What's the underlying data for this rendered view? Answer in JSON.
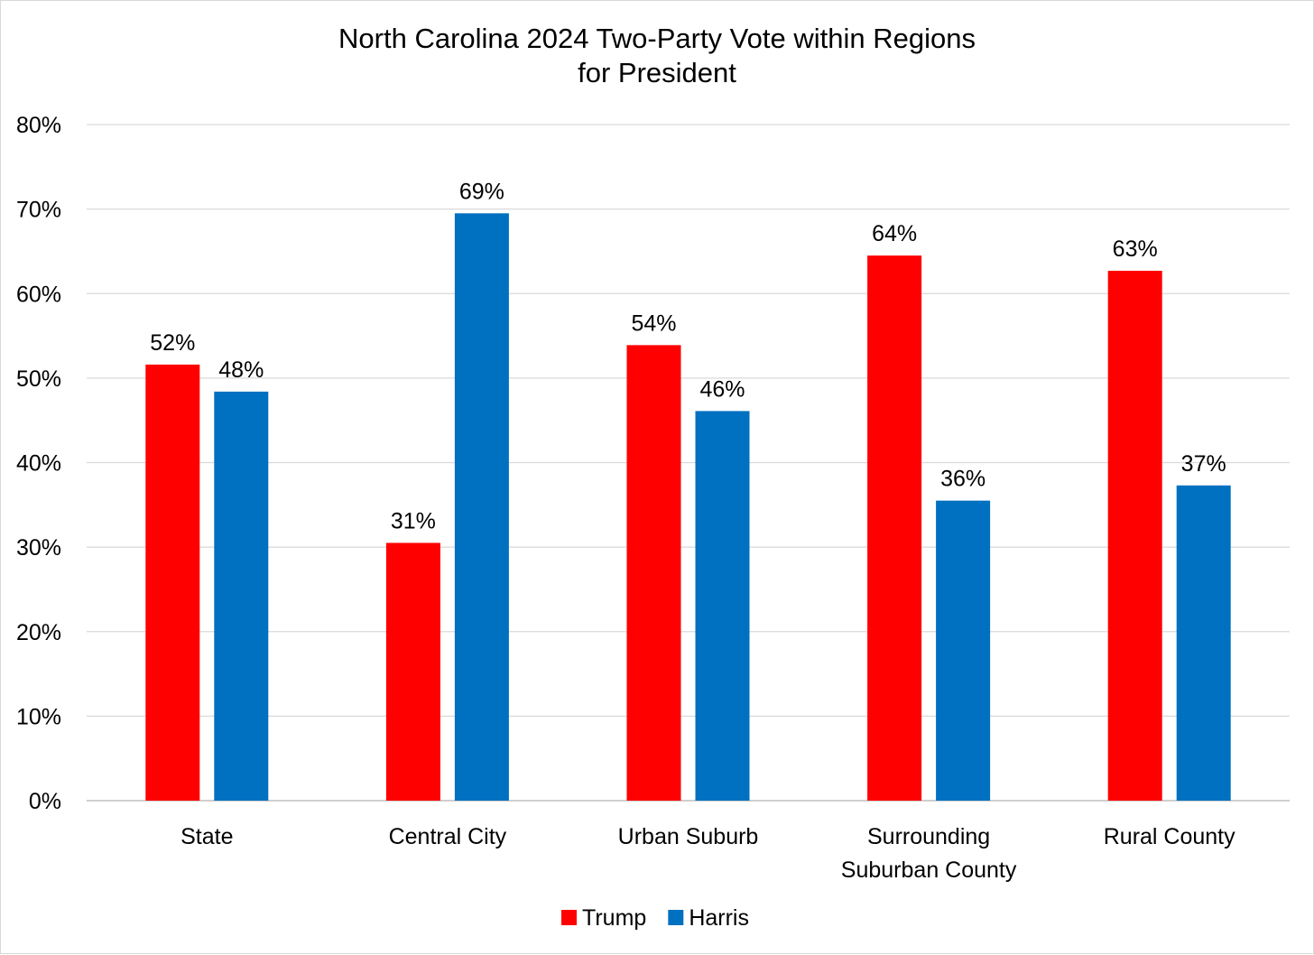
{
  "chart_data": {
    "type": "bar",
    "title_lines": [
      "North Carolina 2024 Two-Party Vote within Regions",
      "for President"
    ],
    "categories": [
      [
        "State"
      ],
      [
        "Central City"
      ],
      [
        "Urban Suburb"
      ],
      [
        "Surrounding",
        "Suburban County"
      ],
      [
        "Rural County"
      ]
    ],
    "series": [
      {
        "name": "Trump",
        "color": "#ff0000",
        "values": [
          51.6,
          30.5,
          53.9,
          64.5,
          62.7
        ],
        "labels": [
          "52%",
          "31%",
          "54%",
          "64%",
          "63%"
        ]
      },
      {
        "name": "Harris",
        "color": "#0070c0",
        "values": [
          48.4,
          69.5,
          46.1,
          35.5,
          37.3
        ],
        "labels": [
          "48%",
          "69%",
          "46%",
          "36%",
          "37%"
        ]
      }
    ],
    "ylim": [
      0,
      80
    ],
    "yticks": [
      0,
      10,
      20,
      30,
      40,
      50,
      60,
      70,
      80
    ],
    "ytick_labels": [
      "0%",
      "10%",
      "20%",
      "30%",
      "40%",
      "50%",
      "60%",
      "70%",
      "80%"
    ],
    "grid": true,
    "legend_position": "bottom-center"
  }
}
